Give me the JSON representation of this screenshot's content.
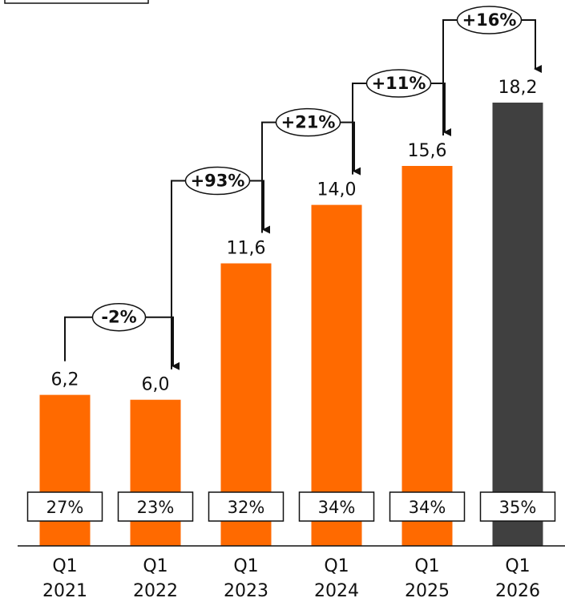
{
  "chart_data": {
    "type": "bar",
    "categories": [
      "Q1\n2021",
      "Q1\n2022",
      "Q1\n2023",
      "Q1\n2024",
      "Q1\n2025",
      "Q1\n2026"
    ],
    "tick_labels": [
      {
        "line1": "Q1",
        "line2": "2021"
      },
      {
        "line1": "Q1",
        "line2": "2022"
      },
      {
        "line1": "Q1",
        "line2": "2023"
      },
      {
        "line1": "Q1",
        "line2": "2024"
      },
      {
        "line1": "Q1",
        "line2": "2025"
      },
      {
        "line1": "Q1",
        "line2": "2026"
      }
    ],
    "values": [
      6.2,
      6.0,
      11.6,
      14.0,
      15.6,
      18.2
    ],
    "value_labels": [
      "6,2",
      "6,0",
      "11,6",
      "14,0",
      "15,6",
      "18,2"
    ],
    "share_labels": [
      "27%",
      "23%",
      "32%",
      "34%",
      "34%",
      "35%"
    ],
    "growth_labels": [
      "-2%",
      "+93%",
      "+21%",
      "+11%",
      "+16%"
    ],
    "bar_colors": [
      "#ff6a00",
      "#ff6a00",
      "#ff6a00",
      "#ff6a00",
      "#ff6a00",
      "#404040"
    ],
    "ylim": [
      0,
      18.2
    ],
    "grid": false,
    "title": "",
    "xlabel": "",
    "ylabel": ""
  }
}
